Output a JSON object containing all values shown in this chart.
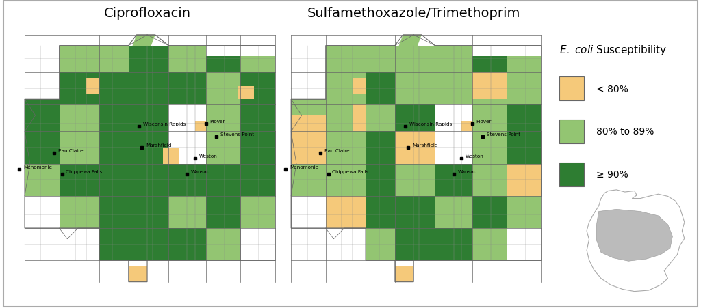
{
  "title_left": "Ciprofloxacin",
  "title_right": "Sulfamethoxazole/Trimethoprim",
  "colors": {
    "low": "#F5C97A",
    "mid": "#93C572",
    "high": "#2E7D32",
    "outline": "#666666",
    "background": "#FFFFFF",
    "wisconsin_fill": "#C0C0C0",
    "wisconsin_outline": "#999999"
  },
  "legend_labels": [
    "< 80%",
    "80% to 89%",
    "≥ 90%"
  ],
  "background_color": "#FFFFFF"
}
